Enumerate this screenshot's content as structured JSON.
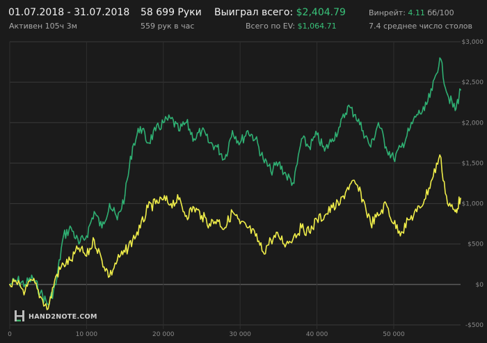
{
  "header": {
    "date_range": "01.07.2018 - 31.07.2018",
    "active": "Активен 105ч 3м",
    "hands": "58 699 Руки",
    "hands_per_hour": "559 рук в час",
    "won_label": "Выиграл всего:",
    "won_value": "$2,404.79",
    "ev_label": "Всего по EV:",
    "ev_value": "$1,064.71",
    "winrate_label": "Винрейт:",
    "winrate_value": "4.11",
    "winrate_unit": "бб/100",
    "tables": "7.4 среднее число столов"
  },
  "logo": {
    "text": "HAND2NOTE.COM"
  },
  "chart_data": {
    "type": "line",
    "x_ticks": [
      0,
      10000,
      20000,
      30000,
      40000,
      50000
    ],
    "x_tick_labels": [
      "0",
      "10 000",
      "20 000",
      "30 000",
      "40 000",
      "50 000"
    ],
    "y_ticks": [
      -500,
      0,
      500,
      1000,
      1500,
      2000,
      2500,
      3000
    ],
    "y_tick_labels": [
      "-$500",
      "$0",
      "$500",
      "$1,000",
      "$1,500",
      "$2,000",
      "$2,500",
      "$3,000"
    ],
    "xlim": [
      0,
      58699
    ],
    "ylim": [
      -500,
      3000
    ],
    "grid": true,
    "series": [
      {
        "color": "#2fb073",
        "x": [
          0,
          1000,
          2000,
          3000,
          4000,
          5000,
          6000,
          7000,
          8000,
          9000,
          10000,
          11000,
          12000,
          13000,
          14000,
          15000,
          16000,
          17000,
          18000,
          19000,
          20000,
          21000,
          22000,
          23000,
          24000,
          25000,
          26000,
          27000,
          28000,
          29000,
          30000,
          31000,
          32000,
          33000,
          34000,
          35000,
          36000,
          37000,
          38000,
          39000,
          40000,
          41000,
          42000,
          43000,
          44000,
          45000,
          46000,
          47000,
          48000,
          49000,
          50000,
          51000,
          52000,
          53000,
          54000,
          55000,
          56000,
          57000,
          58000,
          58699
        ],
        "values": [
          0,
          50,
          0,
          80,
          -100,
          -250,
          0,
          600,
          700,
          500,
          600,
          900,
          700,
          1000,
          800,
          1100,
          1700,
          1950,
          1750,
          1900,
          2000,
          2050,
          1900,
          2000,
          1800,
          1900,
          1750,
          1700,
          1550,
          1900,
          1750,
          1900,
          1800,
          1550,
          1400,
          1500,
          1350,
          1250,
          1800,
          1700,
          1850,
          1650,
          1800,
          1950,
          2200,
          2100,
          1900,
          1700,
          2000,
          1700,
          1550,
          1700,
          1900,
          2100,
          2150,
          2400,
          2800,
          2350,
          2150,
          2405
        ]
      },
      {
        "color": "#f0ee4a",
        "x": [
          0,
          1000,
          2000,
          3000,
          4000,
          5000,
          6000,
          7000,
          8000,
          9000,
          10000,
          11000,
          12000,
          13000,
          14000,
          15000,
          16000,
          17000,
          18000,
          19000,
          20000,
          21000,
          22000,
          23000,
          24000,
          25000,
          26000,
          27000,
          28000,
          29000,
          30000,
          31000,
          32000,
          33000,
          34000,
          35000,
          36000,
          37000,
          38000,
          39000,
          40000,
          41000,
          42000,
          43000,
          44000,
          45000,
          46000,
          47000,
          48000,
          49000,
          50000,
          51000,
          52000,
          53000,
          54000,
          55000,
          56000,
          57000,
          58000,
          58699
        ],
        "values": [
          0,
          0,
          -80,
          50,
          -150,
          -300,
          100,
          250,
          300,
          450,
          350,
          550,
          300,
          100,
          300,
          400,
          550,
          700,
          950,
          1000,
          1050,
          1000,
          1050,
          850,
          950,
          850,
          750,
          800,
          700,
          900,
          750,
          700,
          600,
          400,
          550,
          600,
          500,
          600,
          700,
          650,
          800,
          850,
          950,
          1000,
          1200,
          1250,
          1050,
          750,
          850,
          1000,
          750,
          650,
          800,
          900,
          1050,
          1300,
          1600,
          1000,
          900,
          1065
        ]
      }
    ]
  }
}
